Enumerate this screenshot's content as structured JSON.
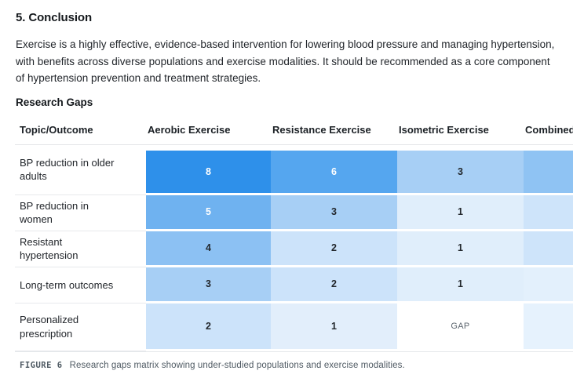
{
  "page": {
    "section_heading": "5. Conclusion",
    "paragraph": "Exercise is a highly effective, evidence-based intervention for lowering blood pressure and managing hypertension, with benefits across diverse populations and exercise modalities. It should be recommended as a core component of hypertension prevention and treatment strategies.",
    "subheading": "Research Gaps"
  },
  "figure": {
    "label": "FIGURE 6",
    "caption": "Research gaps matrix showing under-studied populations and exercise modalities."
  },
  "chart_data": {
    "type": "heatmap",
    "title": "Research Gaps",
    "color_scale": {
      "min_color": "#ffffff",
      "max_color": "#2e90ea",
      "min_value": 0,
      "max_value": 8
    },
    "columns": [
      "Topic/Outcome",
      "Aerobic Exercise",
      "Resistance Exercise",
      "Isometric Exercise",
      "Combined Exercise"
    ],
    "rows": [
      {
        "label": "BP reduction in older adults",
        "cells": [
          {
            "text": "8",
            "bg": "#2e90ea",
            "fg": "#ffffff"
          },
          {
            "text": "6",
            "bg": "#55a6ef",
            "fg": "#ffffff"
          },
          {
            "text": "3",
            "bg": "#a7cff5",
            "fg": "#23282d"
          },
          {
            "text": "",
            "bg": "#8fc3f3",
            "fg": "#23282d"
          }
        ]
      },
      {
        "label": "BP reduction in women",
        "cells": [
          {
            "text": "5",
            "bg": "#6fb2f0",
            "fg": "#ffffff"
          },
          {
            "text": "3",
            "bg": "#a7cff5",
            "fg": "#23282d"
          },
          {
            "text": "1",
            "bg": "#e0eefb",
            "fg": "#23282d"
          },
          {
            "text": "",
            "bg": "#cee4fa",
            "fg": "#23282d"
          }
        ]
      },
      {
        "label": "Resistant hypertension",
        "cells": [
          {
            "text": "4",
            "bg": "#8cc1f3",
            "fg": "#23282d"
          },
          {
            "text": "2",
            "bg": "#cce3fa",
            "fg": "#23282d"
          },
          {
            "text": "1",
            "bg": "#e0eefb",
            "fg": "#23282d"
          },
          {
            "text": "",
            "bg": "#cee4fa",
            "fg": "#23282d"
          }
        ]
      },
      {
        "label": "Long-term outcomes",
        "cells": [
          {
            "text": "3",
            "bg": "#a7cff5",
            "fg": "#23282d"
          },
          {
            "text": "2",
            "bg": "#cce3fa",
            "fg": "#23282d"
          },
          {
            "text": "1",
            "bg": "#e0eefb",
            "fg": "#23282d"
          },
          {
            "text": "",
            "bg": "#e3f0fc",
            "fg": "#23282d"
          }
        ]
      },
      {
        "label": "Personalized prescription",
        "cells": [
          {
            "text": "2",
            "bg": "#cce3fa",
            "fg": "#23282d"
          },
          {
            "text": "1",
            "bg": "#e2eefb",
            "fg": "#23282d"
          },
          {
            "text": "GAP",
            "bg": "#ffffff",
            "fg": "#5e6770"
          },
          {
            "text": "",
            "bg": "#e6f2fd",
            "fg": "#23282d"
          }
        ]
      }
    ]
  }
}
